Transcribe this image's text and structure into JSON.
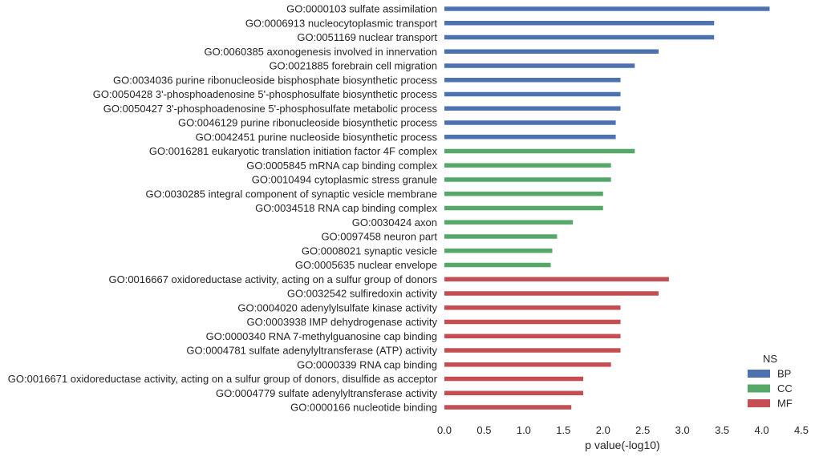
{
  "chart_data": {
    "type": "bar",
    "orientation": "horizontal",
    "xlabel": "p value(-log10)",
    "xlim": [
      0,
      4.5
    ],
    "xticks": [
      "0.0",
      "0.5",
      "1.0",
      "1.5",
      "2.0",
      "2.5",
      "3.0",
      "3.5",
      "4.0",
      "4.5"
    ],
    "grid": false,
    "legend": {
      "title": "NS",
      "placement": "bottom-right",
      "entries": [
        {
          "name": "BP",
          "color": "#4c72b0"
        },
        {
          "name": "CC",
          "color": "#55a868"
        },
        {
          "name": "MF",
          "color": "#c44e52"
        }
      ]
    },
    "bars": [
      {
        "label": "GO:0000103 sulfate assimilation",
        "value": 4.1,
        "ns": "BP"
      },
      {
        "label": "GO:0006913 nucleocytoplasmic transport",
        "value": 3.4,
        "ns": "BP"
      },
      {
        "label": "GO:0051169 nuclear transport",
        "value": 3.4,
        "ns": "BP"
      },
      {
        "label": "GO:0060385 axonogenesis involved in innervation",
        "value": 2.7,
        "ns": "BP"
      },
      {
        "label": "GO:0021885 forebrain cell migration",
        "value": 2.4,
        "ns": "BP"
      },
      {
        "label": "GO:0034036 purine ribonucleoside bisphosphate biosynthetic process",
        "value": 2.22,
        "ns": "BP"
      },
      {
        "label": "GO:0050428 3'-phosphoadenosine 5'-phosphosulfate biosynthetic process",
        "value": 2.22,
        "ns": "BP"
      },
      {
        "label": "GO:0050427 3'-phosphoadenosine 5'-phosphosulfate metabolic process",
        "value": 2.22,
        "ns": "BP"
      },
      {
        "label": "GO:0046129 purine ribonucleoside biosynthetic process",
        "value": 2.16,
        "ns": "BP"
      },
      {
        "label": "GO:0042451 purine nucleoside biosynthetic process",
        "value": 2.16,
        "ns": "BP"
      },
      {
        "label": "GO:0016281 eukaryotic translation initiation factor 4F complex",
        "value": 2.4,
        "ns": "CC"
      },
      {
        "label": "GO:0005845 mRNA cap binding complex",
        "value": 2.1,
        "ns": "CC"
      },
      {
        "label": "GO:0010494 cytoplasmic stress granule",
        "value": 2.1,
        "ns": "CC"
      },
      {
        "label": "GO:0030285 integral component of synaptic vesicle membrane",
        "value": 2.0,
        "ns": "CC"
      },
      {
        "label": "GO:0034518 RNA cap binding complex",
        "value": 2.0,
        "ns": "CC"
      },
      {
        "label": "GO:0030424 axon",
        "value": 1.62,
        "ns": "CC"
      },
      {
        "label": "GO:0097458 neuron part",
        "value": 1.42,
        "ns": "CC"
      },
      {
        "label": "GO:0008021 synaptic vesicle",
        "value": 1.36,
        "ns": "CC"
      },
      {
        "label": "GO:0005635 nuclear envelope",
        "value": 1.34,
        "ns": "CC"
      },
      {
        "label": "GO:0016667 oxidoreductase activity, acting on a sulfur group of donors",
        "value": 2.83,
        "ns": "MF"
      },
      {
        "label": "GO:0032542 sulfiredoxin activity",
        "value": 2.7,
        "ns": "MF"
      },
      {
        "label": "GO:0004020 adenylylsulfate kinase activity",
        "value": 2.22,
        "ns": "MF"
      },
      {
        "label": "GO:0003938 IMP dehydrogenase activity",
        "value": 2.22,
        "ns": "MF"
      },
      {
        "label": "GO:0000340 RNA 7-methylguanosine cap binding",
        "value": 2.22,
        "ns": "MF"
      },
      {
        "label": "GO:0004781 sulfate adenylyltransferase (ATP) activity",
        "value": 2.22,
        "ns": "MF"
      },
      {
        "label": "GO:0000339 RNA cap binding",
        "value": 2.1,
        "ns": "MF"
      },
      {
        "label": "GO:0016671 oxidoreductase activity, acting on a sulfur group of donors, disulfide as acceptor",
        "value": 1.75,
        "ns": "MF"
      },
      {
        "label": "GO:0004779 sulfate adenylyltransferase activity",
        "value": 1.75,
        "ns": "MF"
      },
      {
        "label": "GO:0000166 nucleotide binding",
        "value": 1.6,
        "ns": "MF"
      }
    ]
  }
}
